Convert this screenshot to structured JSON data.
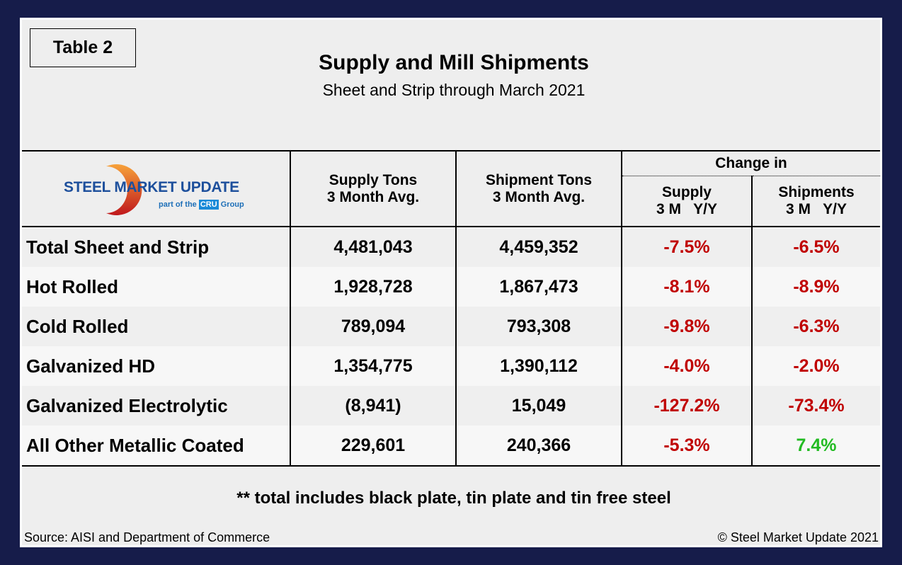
{
  "table_tag": "Table 2",
  "title": "Supply and Mill Shipments",
  "subtitle": "Sheet and Strip through March 2021",
  "logo": {
    "brand": "STEEL MARKET UPDATE",
    "tagline_pre": "part of the",
    "tagline_mark": "CRU",
    "tagline_post": "Group"
  },
  "headers": {
    "supply_l1": "Supply Tons",
    "supply_l2": "3 Month Avg.",
    "ship_l1": "Shipment Tons",
    "ship_l2": "3 Month Avg.",
    "change": "Change in",
    "chg_supply": "Supply",
    "chg_supply_sub": "3 M   Y/Y",
    "chg_ship": "Shipments",
    "chg_ship_sub": "3 M   Y/Y"
  },
  "rows": [
    {
      "label": "Total Sheet and Strip",
      "supply": "4,481,043",
      "shipments": "4,459,352",
      "chg_supply": "-7.5%",
      "chg_ship": "-6.5%"
    },
    {
      "label": "Hot Rolled",
      "supply": "1,928,728",
      "shipments": "1,867,473",
      "chg_supply": "-8.1%",
      "chg_ship": "-8.9%"
    },
    {
      "label": "Cold Rolled",
      "supply": "789,094",
      "shipments": "793,308",
      "chg_supply": "-9.8%",
      "chg_ship": "-6.3%"
    },
    {
      "label": "Galvanized HD",
      "supply": "1,354,775",
      "shipments": "1,390,112",
      "chg_supply": "-4.0%",
      "chg_ship": "-2.0%"
    },
    {
      "label": "Galvanized Electrolytic",
      "supply": "(8,941)",
      "shipments": "15,049",
      "chg_supply": "-127.2%",
      "chg_ship": "-73.4%"
    },
    {
      "label": "All Other Metallic Coated",
      "supply": "229,601",
      "shipments": "240,366",
      "chg_supply": "-5.3%",
      "chg_ship": "7.4%"
    }
  ],
  "colors": {
    "negative": "#c00000",
    "positive": "#22bb22",
    "frame": "#161c4a"
  },
  "note": "** total includes black plate, tin plate and tin free steel",
  "source": "Source: AISI and Department of Commerce",
  "copyright": "© Steel Market Update 2021"
}
